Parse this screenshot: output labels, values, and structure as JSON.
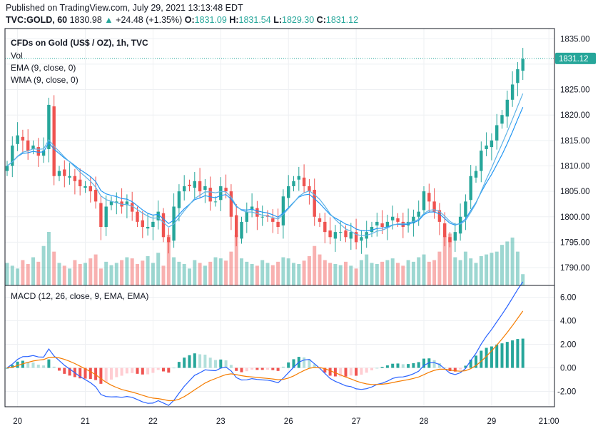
{
  "header": {
    "published": "Published on TradingView.com, July 29, 2021 13:13:48 EDT",
    "symbol": "TVC:GOLD, 60",
    "last": "1830.98",
    "change": "+24.48 (+1.35%)",
    "o_label": "O:",
    "o": "1831.09",
    "h_label": "H:",
    "h": "1831.54",
    "l_label": "L:",
    "l": "1829.30",
    "c_label": "C:",
    "c": "1831.12"
  },
  "legend": {
    "title": "CFDs on Gold (US$ / OZ), 1h, TVC",
    "vol": "Vol",
    "ema": "EMA (9, close, 0)",
    "wma": "WMA (9, close, 0)",
    "macd": "MACD (12, 26, close, 9, EMA, EMA)"
  },
  "colors": {
    "up": "#26a69a",
    "down": "#ef5350",
    "ema": "#2196f3",
    "wma": "#5fb3e6",
    "macd": "#2962ff",
    "signal": "#f57c00",
    "grid": "#eef0f3"
  },
  "chart_data": {
    "type": "candlestick",
    "title": "CFDs on Gold (US$ / OZ), 1h, TVC",
    "price_ticks": [
      "1835.00",
      "1830.00",
      "1825.00",
      "1820.00",
      "1815.00",
      "1810.00",
      "1805.00",
      "1800.00",
      "1795.00",
      "1790.00"
    ],
    "price_range": [
      1786.5,
      1837
    ],
    "last_price_label": "1831.12",
    "macd_ticks": [
      "6.00",
      "4.00",
      "2.00",
      "0.00",
      "-2.00"
    ],
    "macd_range": [
      -3.3,
      7
    ],
    "time_labels": [
      "20",
      "21",
      "22",
      "23",
      "26",
      "27",
      "28",
      "29",
      "21:00"
    ],
    "time_label_bar_index": [
      2,
      15,
      28,
      41,
      54,
      67,
      80,
      93,
      104
    ],
    "closes": [
      1810,
      1814,
      1816,
      1815,
      1813,
      1814,
      1812,
      1813,
      1822,
      1808,
      1809,
      1808,
      1808,
      1807,
      1806,
      1806,
      1805,
      1803,
      1798,
      1802,
      1803,
      1803,
      1802,
      1803,
      1801,
      1799,
      1798,
      1798,
      1799,
      1801,
      1796,
      1795,
      1802,
      1805,
      1806,
      1806,
      1807,
      1805,
      1806,
      1803,
      1803,
      1806,
      1805,
      1800,
      1796,
      1799,
      1801,
      1802,
      1800,
      1800,
      1800,
      1799,
      1798,
      1804,
      1806,
      1807,
      1808,
      1806,
      1805,
      1800,
      1799,
      1797,
      1796,
      1797,
      1797,
      1796,
      1797,
      1795,
      1796,
      1797,
      1798,
      1799,
      1798,
      1799,
      1800,
      1799,
      1798,
      1799,
      1800,
      1801,
      1805,
      1803,
      1801,
      1799,
      1796,
      1795,
      1797,
      1800,
      1803,
      1808,
      1809,
      1813,
      1814,
      1815,
      1818,
      1820,
      1823,
      1826,
      1829,
      1831
    ],
    "volumes": [
      40,
      35,
      30,
      45,
      38,
      50,
      42,
      70,
      95,
      60,
      40,
      35,
      30,
      45,
      38,
      40,
      48,
      55,
      30,
      42,
      36,
      40,
      45,
      50,
      48,
      38,
      44,
      52,
      40,
      58,
      35,
      90,
      50,
      42,
      38,
      30,
      45,
      40,
      35,
      42,
      50,
      48,
      44,
      60,
      90,
      48,
      42,
      38,
      35,
      45,
      40,
      36,
      42,
      50,
      48,
      40,
      38,
      44,
      52,
      70,
      55,
      45,
      40,
      38,
      36,
      42,
      35,
      30,
      45,
      55,
      40,
      38,
      42,
      45,
      48,
      40,
      35,
      45,
      42,
      50,
      55,
      42,
      45,
      60,
      88,
      92,
      50,
      45,
      60,
      48,
      40,
      52,
      55,
      58,
      60,
      72,
      78,
      85,
      60,
      20
    ]
  }
}
